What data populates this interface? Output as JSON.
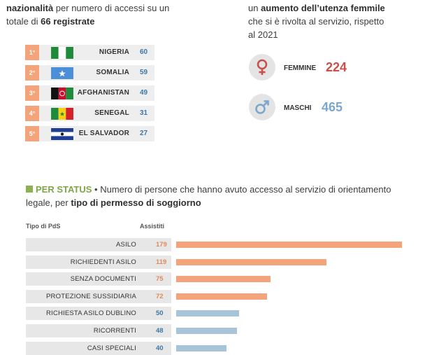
{
  "intro_left": {
    "line1_bold": "nazionalità",
    "line1_rest": " per numero di accessi su un",
    "line2_pre": "totale di ",
    "line2_bold": "66 registrate"
  },
  "ranking": [
    {
      "rank": "1°",
      "country": "NIGERIA",
      "count": "60",
      "flag": "nigeria-flag"
    },
    {
      "rank": "2°",
      "country": "SOMALIA",
      "count": "59",
      "flag": "somalia-flag"
    },
    {
      "rank": "3°",
      "country": "AFGHANISTAN",
      "count": "49",
      "flag": "afghanistan-flag"
    },
    {
      "rank": "4°",
      "country": "SENEGAL",
      "count": "31",
      "flag": "senegal-flag"
    },
    {
      "rank": "5°",
      "country": "EL SALVADOR",
      "count": "27",
      "flag": "el-salvador-flag"
    }
  ],
  "intro_right": {
    "line1_pre": "un ",
    "line1_bold": "aumento dell’utenza femmile",
    "line2": "che si è rivolta al servizio, rispetto",
    "line3": "al 2021"
  },
  "gender": {
    "female": {
      "label": "FEMMINE",
      "value": "224",
      "color": "#c9504a",
      "icon": "female-symbol-icon"
    },
    "male": {
      "label": "MASCHI",
      "value": "465",
      "color": "#7ba7cc",
      "icon": "male-symbol-icon"
    }
  },
  "section": {
    "tag": "PER STATUS",
    "text_a": " • Numero di persone che hanno avuto accesso al servizio di orientamento legale, per ",
    "text_bold": "tipo di permesso di soggiorno"
  },
  "columns": {
    "type": "Tipo di PdS",
    "assisted": "Assistiti"
  },
  "chart_data": {
    "type": "bar",
    "orientation": "horizontal",
    "categories": [
      "ASILO",
      "RICHIEDENTI ASILO",
      "SENZA DOCUMENTI",
      "PROTEZIONE SUSSIDIARIA",
      "RICHIESTA ASILO DUBLINO",
      "RICORRENTI",
      "CASI SPECIALI"
    ],
    "values": [
      179,
      119,
      75,
      72,
      50,
      48,
      40
    ],
    "value_labels": [
      "179",
      "119",
      "75",
      "72",
      "50",
      "48",
      "40"
    ],
    "colors": [
      "#f4a47a",
      "#f4a47a",
      "#f4a47a",
      "#f4a47a",
      "#a7c4d9",
      "#a7c4d9",
      "#a7c4d9"
    ],
    "value_colors": [
      "#e0895a",
      "#e0895a",
      "#e0895a",
      "#e0895a",
      "#3b78a8",
      "#3b78a8",
      "#3b78a8"
    ],
    "xlim": [
      0,
      179
    ]
  }
}
